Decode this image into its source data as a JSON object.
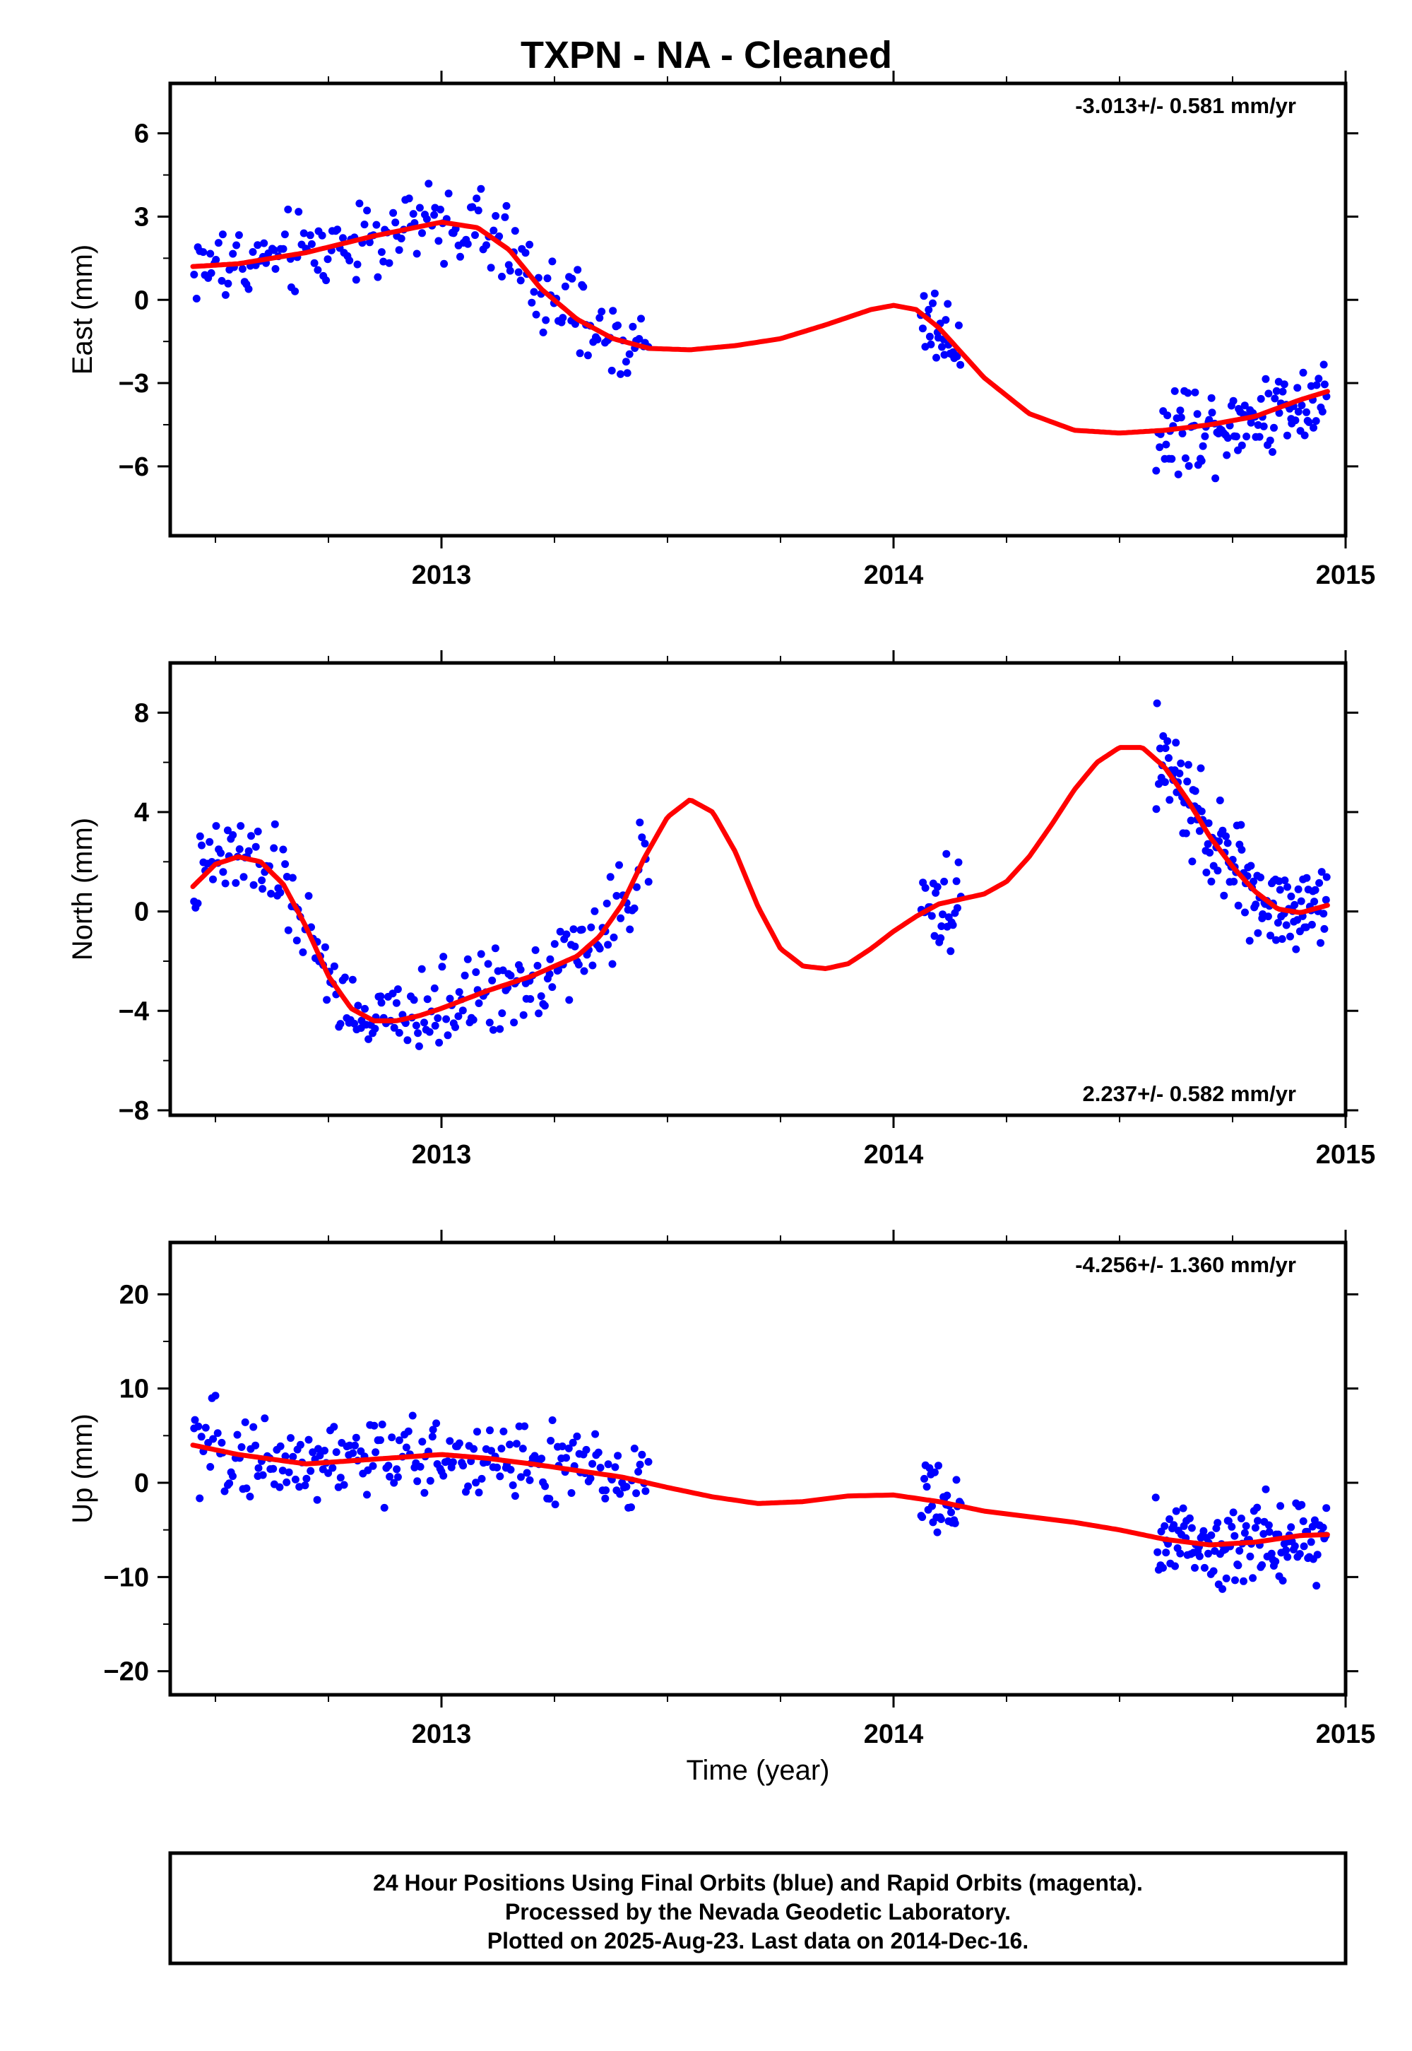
{
  "title": "TXPN  - NA - Cleaned",
  "x_axis_label": "Time (year)",
  "footer": {
    "line1": "24 Hour Positions Using Final Orbits (blue) and Rapid Orbits (magenta).",
    "line2": "Processed by the Nevada Geodetic Laboratory.",
    "line3": "Plotted on 2025-Aug-23. Last data on 2014-Dec-16."
  },
  "colors": {
    "final_orbits": "#0000ff",
    "rapid_orbits": "#ff00ff",
    "model_fit": "#ff0000"
  },
  "chart_data": [
    {
      "type": "scatter",
      "panel": "east",
      "ylabel": "East (mm)",
      "rate_text": "-3.013+/- 0.581 mm/yr",
      "rate_position": "top-right",
      "xlim": [
        2012.4,
        2015.0
      ],
      "ylim": [
        -8.5,
        7.8
      ],
      "x_ticks": [
        2013,
        2014,
        2015
      ],
      "x_tick_labels": [
        "2013",
        "2014",
        "2015"
      ],
      "y_ticks": [
        -6,
        -3,
        0,
        3,
        6
      ],
      "y_tick_labels": [
        "−6",
        "−3",
        "0",
        "3",
        "6"
      ],
      "grid": false,
      "data_segments": [
        {
          "start": 2012.45,
          "end": 2013.46,
          "n": 200
        },
        {
          "start": 2014.06,
          "end": 2014.15,
          "n": 28
        },
        {
          "start": 2014.58,
          "end": 2014.96,
          "n": 110
        }
      ],
      "fit": {
        "x": [
          2012.45,
          2012.55,
          2012.7,
          2012.85,
          2013.0,
          2013.08,
          2013.15,
          2013.22,
          2013.3,
          2013.38,
          2013.46,
          2013.55,
          2013.65,
          2013.75,
          2013.85,
          2013.95,
          2014.0,
          2014.05,
          2014.1,
          2014.2,
          2014.3,
          2014.4,
          2014.5,
          2014.6,
          2014.7,
          2014.8,
          2014.9,
          2014.96
        ],
        "y": [
          1.2,
          1.3,
          1.7,
          2.3,
          2.8,
          2.6,
          1.8,
          0.4,
          -0.7,
          -1.4,
          -1.75,
          -1.8,
          -1.65,
          -1.4,
          -0.9,
          -0.35,
          -0.2,
          -0.35,
          -1.0,
          -2.8,
          -4.1,
          -4.7,
          -4.8,
          -4.7,
          -4.5,
          -4.2,
          -3.6,
          -3.3
        ]
      }
    },
    {
      "type": "scatter",
      "panel": "north",
      "ylabel": "North (mm)",
      "rate_text": "2.237+/- 0.582 mm/yr",
      "rate_position": "bottom-right",
      "xlim": [
        2012.4,
        2015.0
      ],
      "ylim": [
        -8.2,
        10.0
      ],
      "x_ticks": [
        2013,
        2014,
        2015
      ],
      "x_tick_labels": [
        "2013",
        "2014",
        "2015"
      ],
      "y_ticks": [
        -8,
        -4,
        0,
        4,
        8
      ],
      "y_tick_labels": [
        "−8",
        "−4",
        "0",
        "4",
        "8"
      ],
      "grid": false,
      "data_segments": [
        {
          "start": 2012.45,
          "end": 2013.46,
          "n": 230
        },
        {
          "start": 2014.06,
          "end": 2014.15,
          "n": 28
        },
        {
          "start": 2014.58,
          "end": 2014.96,
          "n": 140
        }
      ],
      "fit": {
        "x": [
          2012.45,
          2012.5,
          2012.55,
          2012.6,
          2012.65,
          2012.7,
          2012.75,
          2012.8,
          2012.85,
          2012.9,
          2012.95,
          2013.0,
          2013.1,
          2013.2,
          2013.3,
          2013.35,
          2013.4,
          2013.45,
          2013.5,
          2013.55,
          2013.6,
          2013.65,
          2013.7,
          2013.75,
          2013.8,
          2013.85,
          2013.9,
          2013.95,
          2014.0,
          2014.05,
          2014.1,
          2014.15,
          2014.2,
          2014.25,
          2014.3,
          2014.35,
          2014.4,
          2014.45,
          2014.5,
          2014.55,
          2014.6,
          2014.65,
          2014.7,
          2014.75,
          2014.8,
          2014.85,
          2014.9,
          2014.96
        ],
        "y": [
          1.0,
          1.9,
          2.2,
          2.0,
          1.1,
          -0.6,
          -2.6,
          -3.9,
          -4.4,
          -4.4,
          -4.2,
          -3.9,
          -3.2,
          -2.6,
          -1.8,
          -1.0,
          0.3,
          2.2,
          3.8,
          4.5,
          4.0,
          2.4,
          0.2,
          -1.5,
          -2.2,
          -2.3,
          -2.1,
          -1.5,
          -0.8,
          -0.2,
          0.3,
          0.5,
          0.7,
          1.2,
          2.2,
          3.5,
          4.9,
          6.0,
          6.6,
          6.6,
          5.8,
          4.5,
          3.0,
          1.8,
          0.8,
          0.1,
          -0.05,
          0.25
        ]
      }
    },
    {
      "type": "scatter",
      "panel": "up",
      "ylabel": "Up (mm)",
      "rate_text": "-4.256+/- 1.360 mm/yr",
      "rate_position": "top-right",
      "xlim": [
        2012.4,
        2015.0
      ],
      "ylim": [
        -22.5,
        25.5
      ],
      "x_ticks": [
        2013,
        2014,
        2015
      ],
      "x_tick_labels": [
        "2013",
        "2014",
        "2015"
      ],
      "y_ticks": [
        -20,
        -10,
        0,
        10,
        20
      ],
      "y_tick_labels": [
        "−20",
        "−10",
        "0",
        "10",
        "20"
      ],
      "grid": false,
      "data_segments": [
        {
          "start": 2012.45,
          "end": 2013.46,
          "n": 230
        },
        {
          "start": 2014.06,
          "end": 2014.15,
          "n": 30
        },
        {
          "start": 2014.58,
          "end": 2014.96,
          "n": 130
        }
      ],
      "fit": {
        "x": [
          2012.45,
          2012.55,
          2012.7,
          2012.85,
          2013.0,
          2013.1,
          2013.2,
          2013.3,
          2013.4,
          2013.5,
          2013.6,
          2013.7,
          2013.8,
          2013.9,
          2014.0,
          2014.1,
          2014.2,
          2014.3,
          2014.4,
          2014.5,
          2014.6,
          2014.7,
          2014.8,
          2014.9,
          2014.96
        ],
        "y": [
          4.0,
          3.0,
          2.0,
          2.5,
          3.0,
          2.6,
          2.0,
          1.3,
          0.6,
          -0.5,
          -1.5,
          -2.2,
          -2.0,
          -1.4,
          -1.3,
          -2.0,
          -3.0,
          -3.6,
          -4.2,
          -5.0,
          -6.0,
          -6.6,
          -6.3,
          -5.6,
          -5.5
        ]
      }
    }
  ]
}
